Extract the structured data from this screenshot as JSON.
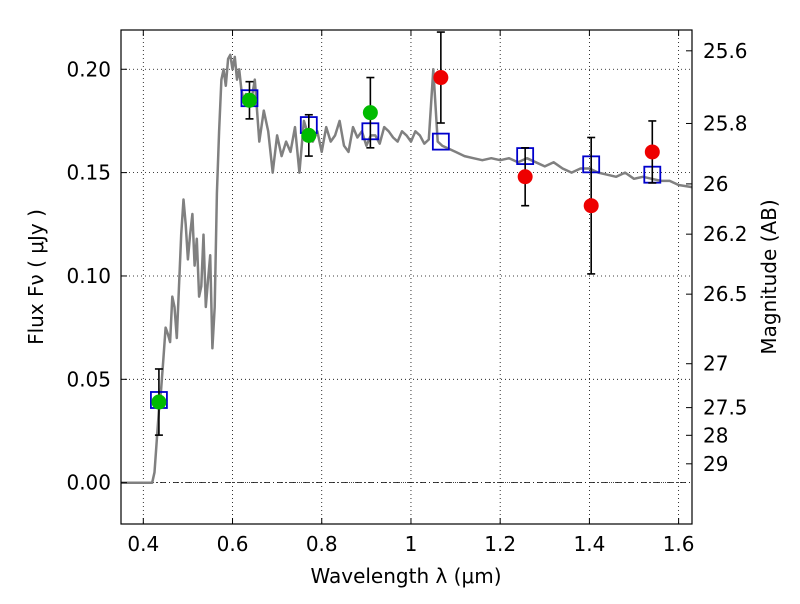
{
  "chart_data": {
    "type": "scatter",
    "xlabel": "Wavelength  λ (μm)",
    "ylabel": "Flux  Fν  ( μJy )",
    "y2label": "Magnitude (AB)",
    "xlim": [
      0.35,
      1.63
    ],
    "ylim": [
      -0.02,
      0.219
    ],
    "grid": true,
    "x_ticks": [
      0.4,
      0.6,
      0.8,
      1,
      1.2,
      1.4,
      1.6
    ],
    "x_tick_labels": [
      "0.4",
      "0.6",
      "0.8",
      "1",
      "1.2",
      "1.4",
      "1.6"
    ],
    "y_ticks": [
      0.0,
      0.05,
      0.1,
      0.15,
      0.2
    ],
    "y_tick_labels": [
      "0.00",
      "0.05",
      "0.10",
      "0.15",
      "0.20"
    ],
    "mag_ticks": [
      25.6,
      25.8,
      26,
      26.2,
      26.5,
      27,
      27.5,
      28,
      29
    ],
    "mag_tick_labels": [
      "25.6",
      "25.8",
      "26",
      "26.2",
      "26.5",
      "27",
      "27.5",
      "28",
      "29"
    ],
    "colors": {
      "template": "#808080",
      "model_box": "#0000cc",
      "detection_green": "#00bb00",
      "detection_red": "#ee0000",
      "errorbar": "#000000",
      "zero_line": "#000000",
      "grid": "#000000"
    },
    "series": [
      {
        "kind": "model_template_line",
        "x": [
          0.35,
          0.41,
          0.42,
          0.425,
          0.43,
          0.435,
          0.44,
          0.445,
          0.45,
          0.455,
          0.46,
          0.465,
          0.47,
          0.475,
          0.48,
          0.485,
          0.49,
          0.495,
          0.5,
          0.505,
          0.51,
          0.515,
          0.52,
          0.525,
          0.53,
          0.535,
          0.54,
          0.545,
          0.55,
          0.555,
          0.56,
          0.565,
          0.57,
          0.575,
          0.58,
          0.585,
          0.59,
          0.595,
          0.6,
          0.605,
          0.61,
          0.615,
          0.62,
          0.625,
          0.63,
          0.64,
          0.65,
          0.66,
          0.67,
          0.68,
          0.69,
          0.7,
          0.71,
          0.72,
          0.73,
          0.74,
          0.75,
          0.76,
          0.77,
          0.78,
          0.79,
          0.8,
          0.81,
          0.82,
          0.83,
          0.84,
          0.85,
          0.86,
          0.87,
          0.88,
          0.89,
          0.9,
          0.91,
          0.92,
          0.93,
          0.94,
          0.95,
          0.96,
          0.97,
          0.98,
          0.99,
          1.0,
          1.01,
          1.02,
          1.03,
          1.04,
          1.05,
          1.06,
          1.07,
          1.08,
          1.1,
          1.12,
          1.14,
          1.16,
          1.18,
          1.2,
          1.22,
          1.24,
          1.26,
          1.28,
          1.3,
          1.32,
          1.34,
          1.36,
          1.38,
          1.4,
          1.42,
          1.44,
          1.46,
          1.48,
          1.5,
          1.52,
          1.54,
          1.56,
          1.58,
          1.6,
          1.63
        ],
        "y": [
          0.0,
          0.0,
          0.0,
          0.005,
          0.02,
          0.035,
          0.045,
          0.06,
          0.075,
          0.072,
          0.068,
          0.09,
          0.085,
          0.07,
          0.095,
          0.12,
          0.137,
          0.125,
          0.108,
          0.12,
          0.13,
          0.105,
          0.118,
          0.09,
          0.095,
          0.12,
          0.085,
          0.098,
          0.11,
          0.065,
          0.085,
          0.14,
          0.17,
          0.195,
          0.2,
          0.192,
          0.205,
          0.207,
          0.2,
          0.206,
          0.195,
          0.2,
          0.19,
          0.185,
          0.188,
          0.182,
          0.195,
          0.165,
          0.18,
          0.17,
          0.15,
          0.168,
          0.158,
          0.165,
          0.16,
          0.172,
          0.15,
          0.175,
          0.168,
          0.165,
          0.17,
          0.16,
          0.172,
          0.165,
          0.168,
          0.175,
          0.163,
          0.16,
          0.172,
          0.167,
          0.17,
          0.163,
          0.168,
          0.168,
          0.164,
          0.172,
          0.17,
          0.167,
          0.165,
          0.17,
          0.168,
          0.165,
          0.17,
          0.168,
          0.164,
          0.166,
          0.2,
          0.165,
          0.163,
          0.162,
          0.16,
          0.158,
          0.157,
          0.156,
          0.157,
          0.156,
          0.157,
          0.155,
          0.157,
          0.155,
          0.153,
          0.155,
          0.152,
          0.15,
          0.152,
          0.152,
          0.15,
          0.149,
          0.148,
          0.15,
          0.147,
          0.148,
          0.147,
          0.146,
          0.146,
          0.144,
          0.143
        ]
      },
      {
        "kind": "model_boxes",
        "x": [
          0.435,
          0.638,
          0.771,
          0.909,
          1.067,
          1.256,
          1.404,
          1.541
        ],
        "y": [
          0.04,
          0.186,
          0.173,
          0.17,
          0.165,
          0.158,
          0.154,
          0.149
        ]
      },
      {
        "kind": "detections_green",
        "x": [
          0.435,
          0.638,
          0.771,
          0.909
        ],
        "y": [
          0.039,
          0.185,
          0.168,
          0.179
        ],
        "err": [
          0.016,
          0.009,
          0.01,
          0.017
        ]
      },
      {
        "kind": "detections_red",
        "x": [
          1.067,
          1.256,
          1.404,
          1.541
        ],
        "y": [
          0.196,
          0.148,
          0.134,
          0.16
        ],
        "err": [
          0.022,
          0.014,
          0.033,
          0.015
        ]
      }
    ]
  }
}
